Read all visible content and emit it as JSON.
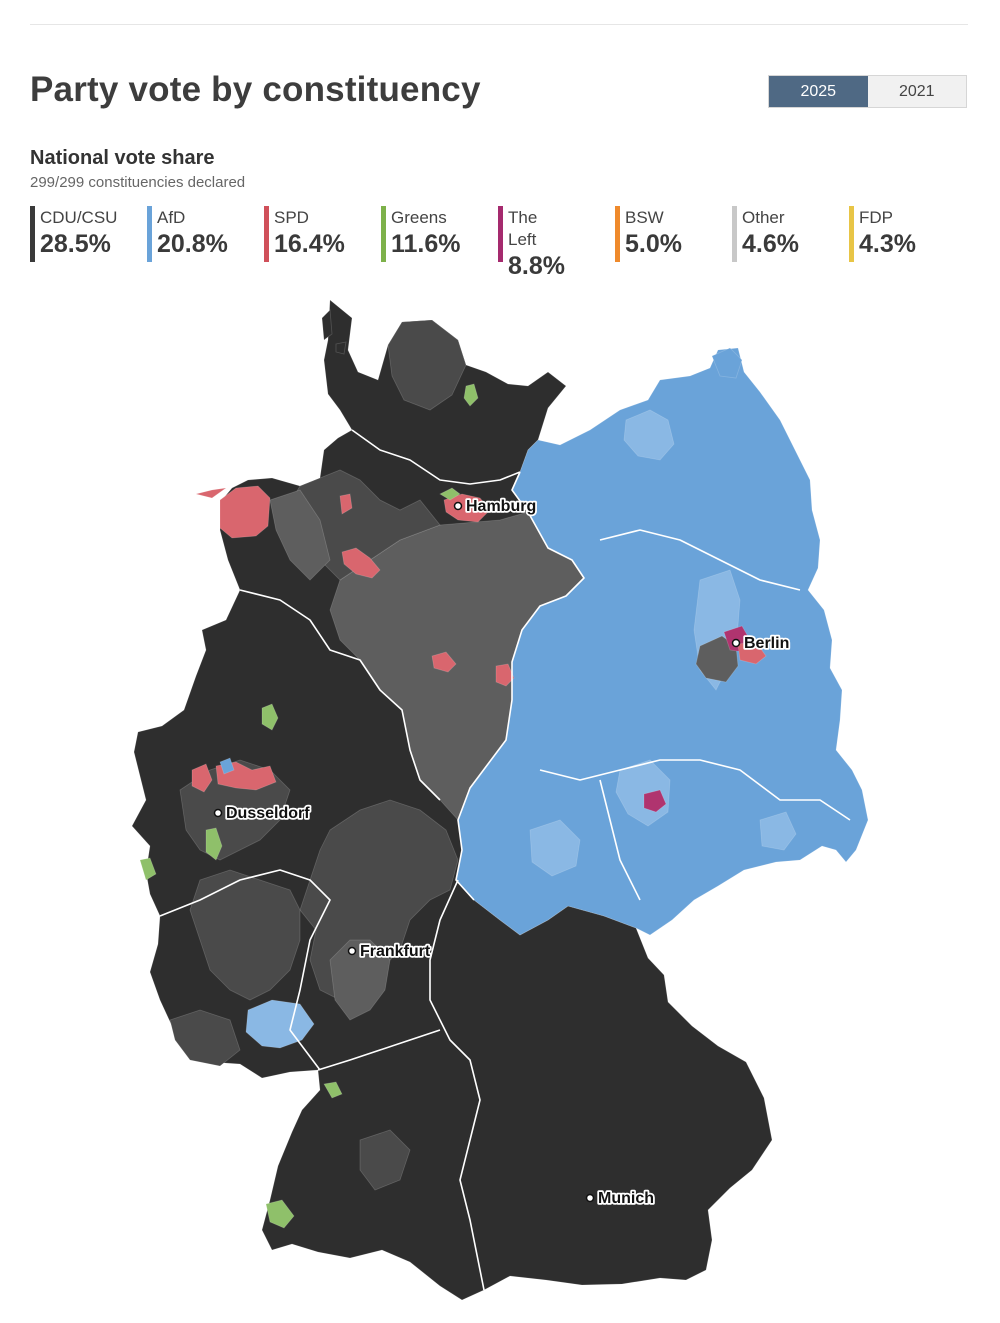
{
  "title": "Party vote by constituency",
  "year_toggle": {
    "options": [
      "2025",
      "2021"
    ],
    "selected": "2025"
  },
  "summary": {
    "heading": "National vote share",
    "declared_text": "299/299 constituencies declared"
  },
  "parties": [
    {
      "name": "CDU/CSU",
      "share": "28.5%",
      "color": "#3a3a3a"
    },
    {
      "name": "AfD",
      "share": "20.8%",
      "color": "#6aa3d9"
    },
    {
      "name": "SPD",
      "share": "16.4%",
      "color": "#d0505a"
    },
    {
      "name": "Greens",
      "share": "11.6%",
      "color": "#7db14a"
    },
    {
      "name": "The Left",
      "share": "8.8%",
      "color": "#a52a6e"
    },
    {
      "name": "BSW",
      "share": "5.0%",
      "color": "#ef8a2c"
    },
    {
      "name": "Other",
      "share": "4.6%",
      "color": "#c8c8c8"
    },
    {
      "name": "FDP",
      "share": "4.3%",
      "color": "#e8c546"
    }
  ],
  "map": {
    "region_colors": {
      "cdu_dark": "#2e2e2e",
      "cdu_mid": "#4a4a4a",
      "cdu_light": "#5e5e5e",
      "afd_main": "#6aa3d9",
      "afd_light": "#8ab8e4",
      "spd": "#d9666e",
      "greens": "#8fc06a",
      "left": "#b0346f"
    },
    "cities": [
      "Hamburg",
      "Berlin",
      "Dusseldorf",
      "Frankfurt",
      "Munich"
    ]
  }
}
